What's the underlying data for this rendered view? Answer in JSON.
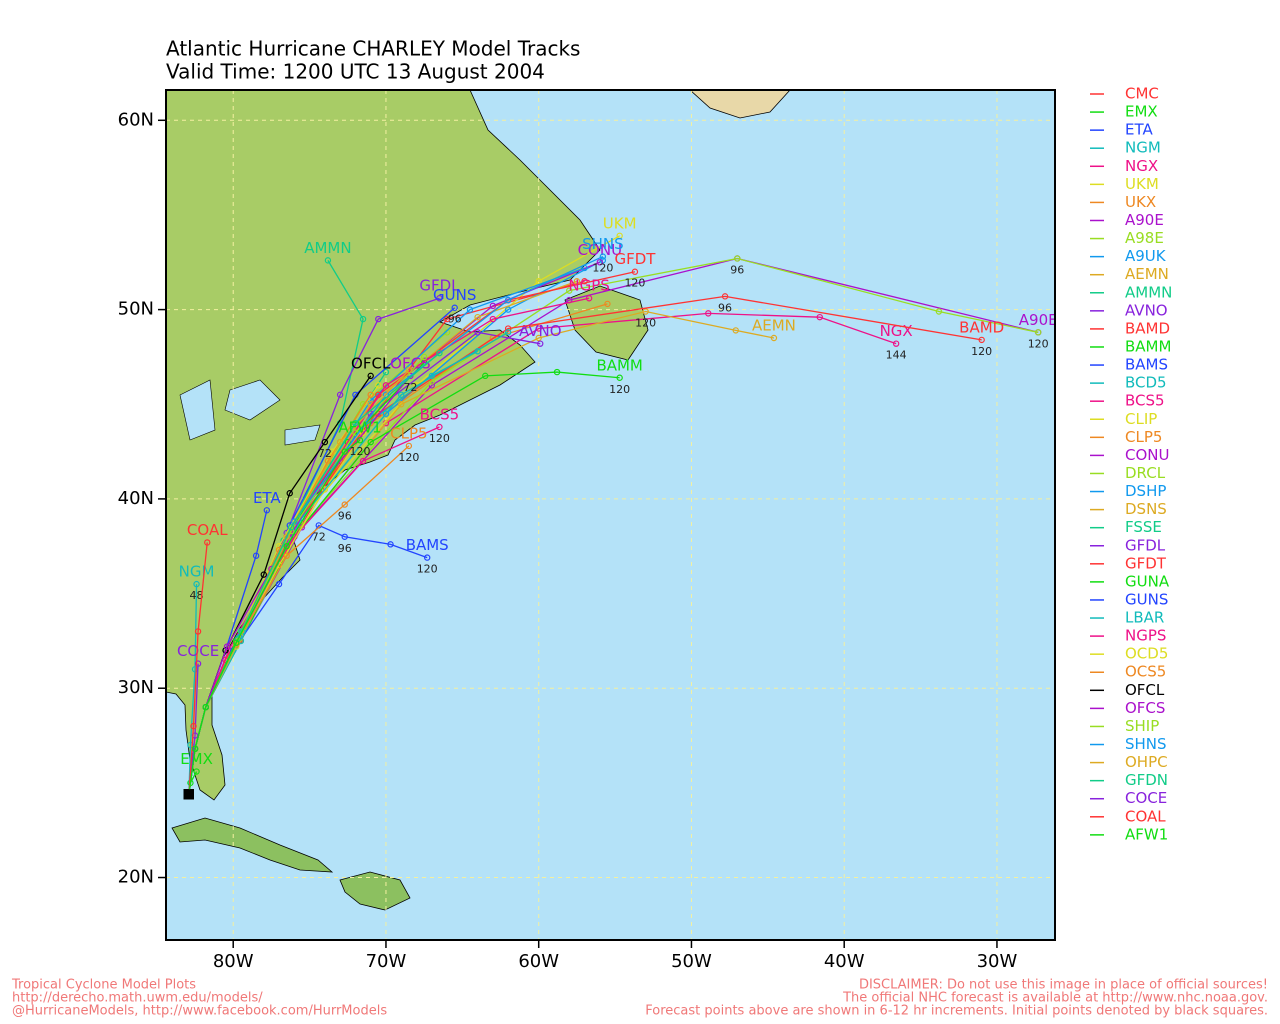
{
  "chart_data": {
    "type": "track",
    "title": "Atlantic Hurricane CHARLEY Model Tracks",
    "subtitle": "Valid Time: 1200 UTC 13 August 2004",
    "xlim": [
      -84.4,
      -26.2
    ],
    "ylim": [
      16.7,
      61.6
    ],
    "xticks": [
      {
        "value": -80,
        "label": "80W"
      },
      {
        "value": -70,
        "label": "70W"
      },
      {
        "value": -60,
        "label": "60W"
      },
      {
        "value": -50,
        "label": "50W"
      },
      {
        "value": -40,
        "label": "40W"
      },
      {
        "value": -30,
        "label": "30W"
      }
    ],
    "yticks": [
      {
        "value": 20,
        "label": "20N"
      },
      {
        "value": 30,
        "label": "30N"
      },
      {
        "value": 40,
        "label": "40N"
      },
      {
        "value": 50,
        "label": "50N"
      },
      {
        "value": 60,
        "label": "60N"
      }
    ],
    "grid": true,
    "series": [
      {
        "name": "CMC",
        "color": "#ff3333",
        "x": [
          -82.9,
          -82.5,
          -81.8,
          -80.5,
          -77.5,
          -73,
          -66,
          -57
        ],
        "values": [
          24.4,
          26.8,
          29,
          31.5,
          36,
          42,
          49.5,
          51.5
        ]
      },
      {
        "name": "EMX",
        "color": "#11dd11",
        "x": [
          -82.9,
          -82.8,
          -82.4
        ],
        "values": [
          24.4,
          25,
          25.6
        ],
        "tag": true
      },
      {
        "name": "ETA",
        "color": "#2244ff",
        "x": [
          -82.9,
          -82.5,
          -81.8,
          -80.5,
          -78.5,
          -77.8
        ],
        "values": [
          24.4,
          26.8,
          29,
          32,
          37,
          39.4
        ],
        "tag": true
      },
      {
        "name": "NGM",
        "color": "#11bbbb",
        "x": [
          -82.9,
          -82.8,
          -82.5,
          -82.4
        ],
        "values": [
          24.4,
          27,
          31,
          35.5
        ],
        "hours": [
          null,
          null,
          null,
          48
        ],
        "tag": true
      },
      {
        "name": "NGX",
        "color": "#ee1188",
        "x": [
          -82.9,
          -82.5,
          -81.8,
          -80.3,
          -76.5,
          -70,
          -60,
          -48.9,
          -41.6,
          -36.6
        ],
        "values": [
          24.4,
          26.8,
          29,
          32,
          37.5,
          44,
          49,
          49.8,
          49.6,
          48.2
        ],
        "hours": [
          null,
          null,
          null,
          null,
          null,
          null,
          null,
          null,
          null,
          144
        ],
        "tag": true
      },
      {
        "name": "UKM",
        "color": "#dddd22",
        "x": [
          -82.9,
          -82.5,
          -81.8,
          -79.5,
          -75.5,
          -68,
          -60,
          -54.7
        ],
        "values": [
          24.4,
          26.8,
          29,
          33,
          39,
          46,
          51.5,
          53.9
        ],
        "tag": true
      },
      {
        "name": "UKX",
        "color": "#ee8822",
        "x": [
          -82.9,
          -82.5,
          -81.8,
          -79.8,
          -76.5,
          -71,
          -63,
          -55.5
        ],
        "values": [
          24.4,
          26.8,
          29,
          32.5,
          38,
          44,
          48.5,
          50.3
        ]
      },
      {
        "name": "A90E",
        "color": "#aa11cc",
        "x": [
          -82.9,
          -82.5,
          -81.8,
          -79.5,
          -75.5,
          -67,
          -58,
          -47,
          -27.3
        ],
        "values": [
          24.4,
          26.8,
          29,
          32.5,
          38.5,
          46,
          50.5,
          52.7,
          48.8
        ],
        "hours": [
          null,
          null,
          null,
          null,
          null,
          null,
          null,
          96,
          120
        ],
        "tag": true
      },
      {
        "name": "A98E",
        "color": "#99dd22",
        "x": [
          -82.9,
          -82.5,
          -81.8,
          -79.5,
          -75.5,
          -67,
          -58,
          -47,
          -33.8,
          -27.3
        ],
        "values": [
          24.4,
          26.8,
          29,
          32.5,
          38.6,
          46.2,
          51,
          52.7,
          49.9,
          48.8
        ]
      },
      {
        "name": "A9UK",
        "color": "#1199ee",
        "x": [
          -82.9,
          -82.5,
          -81.8,
          -79.7,
          -76,
          -70,
          -62,
          -55.8
        ],
        "values": [
          24.4,
          26.8,
          29,
          32.5,
          38.5,
          44.5,
          50,
          52.6
        ]
      },
      {
        "name": "AEMN",
        "color": "#ddaa22",
        "x": [
          -82.9,
          -82.5,
          -81.8,
          -79.5,
          -76,
          -69,
          -60,
          -53,
          -47.1,
          -44.6
        ],
        "values": [
          24.4,
          26.8,
          29,
          32.5,
          38,
          45,
          48.5,
          49.9,
          48.9,
          48.5
        ],
        "hours": [
          null,
          null,
          null,
          null,
          null,
          null,
          null,
          120,
          null,
          null
        ],
        "tag": true
      },
      {
        "name": "AMMN",
        "color": "#11cc88",
        "x": [
          -82.9,
          -82.5,
          -81.8,
          -79.5,
          -76.5,
          -73,
          -71.5,
          -73.8
        ],
        "values": [
          24.4,
          26.8,
          29,
          33,
          38,
          44,
          49.5,
          52.6
        ],
        "tag": true
      },
      {
        "name": "AVNO",
        "color": "#8822dd",
        "x": [
          -82.9,
          -82.5,
          -81.8,
          -79.8,
          -76.5,
          -71,
          -64,
          -59.9
        ],
        "values": [
          24.4,
          26.8,
          29,
          32.5,
          38,
          44.5,
          48.8,
          48.2
        ],
        "tag": true
      },
      {
        "name": "BAMD",
        "color": "#ff3333",
        "x": [
          -82.9,
          -82.5,
          -81.8,
          -79.6,
          -76,
          -70.5,
          -62,
          -47.8,
          -31
        ],
        "values": [
          24.4,
          26.8,
          29,
          32.5,
          38.5,
          44.5,
          49,
          50.7,
          48.4
        ],
        "hours": [
          null,
          null,
          null,
          null,
          null,
          null,
          null,
          96,
          120
        ],
        "tag": true
      },
      {
        "name": "BAMM",
        "color": "#11dd11",
        "x": [
          -82.9,
          -82.5,
          -81.8,
          -79.5,
          -76,
          -71,
          -63.5,
          -58.8,
          -54.7
        ],
        "values": [
          24.4,
          26.8,
          29,
          32.5,
          38,
          43,
          46.5,
          46.7,
          46.4
        ],
        "hours": [
          null,
          null,
          null,
          null,
          null,
          null,
          null,
          null,
          120
        ],
        "tag": true
      },
      {
        "name": "BAMS",
        "color": "#2244ff",
        "x": [
          -82.9,
          -82.5,
          -81.8,
          -80,
          -77,
          -74.4,
          -72.7,
          -69.7,
          -67.3
        ],
        "values": [
          24.4,
          26.8,
          29,
          32,
          35.5,
          38.6,
          38,
          37.6,
          36.9
        ],
        "hours": [
          null,
          null,
          null,
          null,
          null,
          72,
          96,
          null,
          120
        ],
        "tag": true
      },
      {
        "name": "BCD5",
        "color": "#11bbbb",
        "x": [
          -82.9,
          -82.5,
          -81.8,
          -79.5,
          -76,
          -72,
          -67,
          -64
        ],
        "values": [
          24.4,
          26.8,
          29,
          32.5,
          38.5,
          43.5,
          46.5,
          47.8
        ]
      },
      {
        "name": "BCS5",
        "color": "#ee1188",
        "x": [
          -82.9,
          -82.5,
          -81.8,
          -79.7,
          -76,
          -71.5,
          -66.5
        ],
        "values": [
          24.4,
          26.8,
          29,
          32.5,
          38,
          42,
          43.8
        ],
        "hours": [
          null,
          null,
          null,
          null,
          null,
          null,
          120
        ],
        "tag": true
      },
      {
        "name": "CLIP",
        "color": "#dddd22",
        "x": [
          -82.9,
          -82.5,
          -81.8,
          -79.8,
          -77,
          -74,
          -71.5
        ],
        "values": [
          24.4,
          26.8,
          29,
          32.2,
          36.5,
          40.5,
          43.5
        ]
      },
      {
        "name": "CLP5",
        "color": "#ee8822",
        "x": [
          -82.9,
          -82.5,
          -81.8,
          -79.8,
          -76.5,
          -72.7,
          -68.5
        ],
        "values": [
          24.4,
          26.8,
          29,
          32.3,
          37,
          39.7,
          42.8
        ],
        "hours": [
          null,
          null,
          null,
          null,
          null,
          96,
          120
        ],
        "tag": true
      },
      {
        "name": "CONU",
        "color": "#aa11cc",
        "x": [
          -82.9,
          -82.5,
          -81.8,
          -79.6,
          -76.3,
          -71,
          -63,
          -56
        ],
        "values": [
          24.4,
          26.8,
          29,
          32.6,
          38.3,
          45,
          50.2,
          52.5
        ],
        "tag": true
      },
      {
        "name": "DRCL",
        "color": "#99dd22",
        "x": [
          -82.9,
          -82.5,
          -81.8,
          -79.7,
          -76.2,
          -71.5,
          -66
        ],
        "values": [
          24.4,
          26.8,
          29,
          32.6,
          38.5,
          45,
          48.8
        ]
      },
      {
        "name": "DSHP",
        "color": "#1199ee",
        "x": [
          -82.9,
          -82.5,
          -81.8,
          -79.6,
          -76,
          -71,
          -64.5,
          -57
        ],
        "values": [
          24.4,
          26.8,
          29,
          32.7,
          38.8,
          45.2,
          50,
          52.2
        ]
      },
      {
        "name": "DSNS",
        "color": "#ddaa22",
        "x": [
          -82.9,
          -82.5,
          -81.8,
          -79.6,
          -76,
          -71,
          -64,
          -57.5
        ],
        "values": [
          24.4,
          26.8,
          29,
          32.7,
          38.7,
          45,
          49.6,
          51.5
        ]
      },
      {
        "name": "FSSE",
        "color": "#11cc88",
        "x": [
          -82.9,
          -82.5,
          -81.8,
          -79.8,
          -76.7,
          -73,
          -70
        ],
        "values": [
          24.4,
          26.8,
          29,
          32.4,
          37.8,
          43,
          46.7
        ]
      },
      {
        "name": "GFDL",
        "color": "#8822dd",
        "x": [
          -82.9,
          -82.5,
          -81.8,
          -79.7,
          -76.5,
          -73,
          -70.5,
          -66.5
        ],
        "values": [
          24.4,
          26.8,
          29,
          32.5,
          38.2,
          45.5,
          49.5,
          50.6
        ],
        "tag": true
      },
      {
        "name": "GFDT",
        "color": "#ff3333",
        "x": [
          -82.9,
          -82.5,
          -81.8,
          -79.6,
          -76,
          -70.5,
          -62,
          -53.7
        ],
        "values": [
          24.4,
          26.8,
          29,
          32.6,
          38.5,
          45.5,
          50.5,
          52
        ],
        "hours": [
          null,
          null,
          null,
          null,
          null,
          null,
          null,
          120
        ],
        "tag": true
      },
      {
        "name": "GUNA",
        "color": "#11dd11",
        "x": [
          -82.9,
          -82.5,
          -81.8,
          -79.8,
          -76.5,
          -72.5,
          -67.5
        ],
        "values": [
          24.4,
          26.8,
          29,
          32.5,
          38,
          43,
          47.2
        ]
      },
      {
        "name": "GUNS",
        "color": "#2244ff",
        "x": [
          -82.9,
          -82.5,
          -81.8,
          -79.7,
          -76.3,
          -72,
          -65.5
        ],
        "values": [
          24.4,
          26.8,
          29,
          32.6,
          38.6,
          45.5,
          50.1
        ],
        "hours": [
          null,
          null,
          null,
          null,
          null,
          null,
          96
        ],
        "tag": true
      },
      {
        "name": "LBAR",
        "color": "#11bbbb",
        "x": [
          -82.9,
          -82.5,
          -81.8,
          -79.4,
          -75.5,
          -69,
          -62
        ],
        "values": [
          24.4,
          26.8,
          29,
          33,
          39,
          45.5,
          48.8
        ]
      },
      {
        "name": "NGPS",
        "color": "#ee1188",
        "x": [
          -82.9,
          -82.5,
          -81.8,
          -79.6,
          -76,
          -70,
          -63,
          -56.7
        ],
        "values": [
          24.4,
          26.8,
          29,
          32.6,
          38.8,
          46,
          49.5,
          50.6
        ],
        "tag": true
      },
      {
        "name": "OCD5",
        "color": "#dddd22",
        "x": [
          -82.9,
          -82.5,
          -81.8,
          -79.8,
          -77,
          -73.5,
          -70.5
        ],
        "values": [
          24.4,
          26.8,
          29,
          32.4,
          37.5,
          42.5,
          46
        ]
      },
      {
        "name": "OCS5",
        "color": "#ee8822",
        "x": [
          -82.9,
          -82.5,
          -81.8,
          -79.8,
          -77,
          -73.8,
          -71
        ],
        "values": [
          24.4,
          26.8,
          29,
          32.4,
          37.3,
          42,
          45.5
        ]
      },
      {
        "name": "OFCL",
        "color": "#000000",
        "x": [
          -82.9,
          -82.5,
          -81.8,
          -80.5,
          -78,
          -76.3,
          -74,
          -71
        ],
        "values": [
          24.4,
          26.8,
          29,
          32,
          36,
          40.3,
          43,
          46.5
        ],
        "hours": [
          null,
          null,
          null,
          null,
          null,
          null,
          72,
          null
        ],
        "tag": true
      },
      {
        "name": "OFCS",
        "color": "#aa11cc",
        "x": [
          -82.9,
          -82.5,
          -81.8,
          -80.4,
          -77.5,
          -74.5,
          -68.4
        ],
        "values": [
          24.4,
          26.8,
          29,
          32.2,
          36.3,
          40.5,
          46.5
        ],
        "hours": [
          null,
          null,
          null,
          null,
          null,
          null,
          72
        ],
        "tag": true
      },
      {
        "name": "SHIP",
        "color": "#99dd22",
        "x": [
          -82.9,
          -82.5,
          -81.8,
          -79.6,
          -76.2,
          -72,
          -67.5
        ],
        "values": [
          24.4,
          26.8,
          29,
          32.6,
          38.3,
          43.5,
          47.5
        ]
      },
      {
        "name": "SHNS",
        "color": "#1199ee",
        "x": [
          -82.9,
          -82.5,
          -81.8,
          -79.6,
          -76,
          -70,
          -62,
          -55.8
        ],
        "values": [
          24.4,
          26.8,
          29,
          32.7,
          38.8,
          45.5,
          50.5,
          52.8
        ],
        "hours": [
          null,
          null,
          null,
          null,
          null,
          null,
          null,
          120
        ],
        "tag": true
      },
      {
        "name": "OHPC",
        "color": "#ddaa22",
        "x": [
          -82.9,
          -82.5,
          -81.8,
          -79.7,
          -76.5,
          -73,
          -68.5
        ],
        "values": [
          24.4,
          26.8,
          29,
          32.5,
          38,
          43,
          46.8
        ]
      },
      {
        "name": "GFDN",
        "color": "#11cc88",
        "x": [
          -82.9,
          -82.5,
          -81.8,
          -79.7,
          -76.2,
          -72,
          -66.5
        ],
        "values": [
          24.4,
          26.8,
          29,
          32.6,
          38.5,
          44,
          47.7
        ]
      },
      {
        "name": "COCE",
        "color": "#8822dd",
        "x": [
          -82.9,
          -82.5,
          -82.3
        ],
        "values": [
          24.4,
          27.5,
          31.3
        ],
        "tag": true
      },
      {
        "name": "COAL",
        "color": "#ff3333",
        "x": [
          -82.9,
          -82.6,
          -82.3,
          -81.7
        ],
        "values": [
          24.4,
          28,
          33,
          37.7
        ],
        "tag": true
      },
      {
        "name": "AFW1",
        "color": "#11dd11",
        "x": [
          -82.9,
          -82.5,
          -81.8,
          -79.8,
          -76.5,
          -72.7,
          -71.7
        ],
        "values": [
          24.4,
          26.8,
          29,
          32.4,
          37.5,
          42.5,
          43.1
        ],
        "hours": [
          null,
          null,
          null,
          null,
          null,
          null,
          120
        ],
        "tag": true
      }
    ]
  },
  "footer": {
    "left": [
      "Tropical Cyclone Model Plots",
      "http://derecho.math.uwm.edu/models/",
      "@HurricaneModels, http://www.facebook.com/HurrModels"
    ],
    "right": [
      "DISCLAIMER: Do not use this image in place of official sources!",
      "The official NHC forecast is available at http://www.nhc.noaa.gov.",
      "Forecast points above are shown in 6-12 hr increments. Initial points denoted by black squares."
    ]
  }
}
